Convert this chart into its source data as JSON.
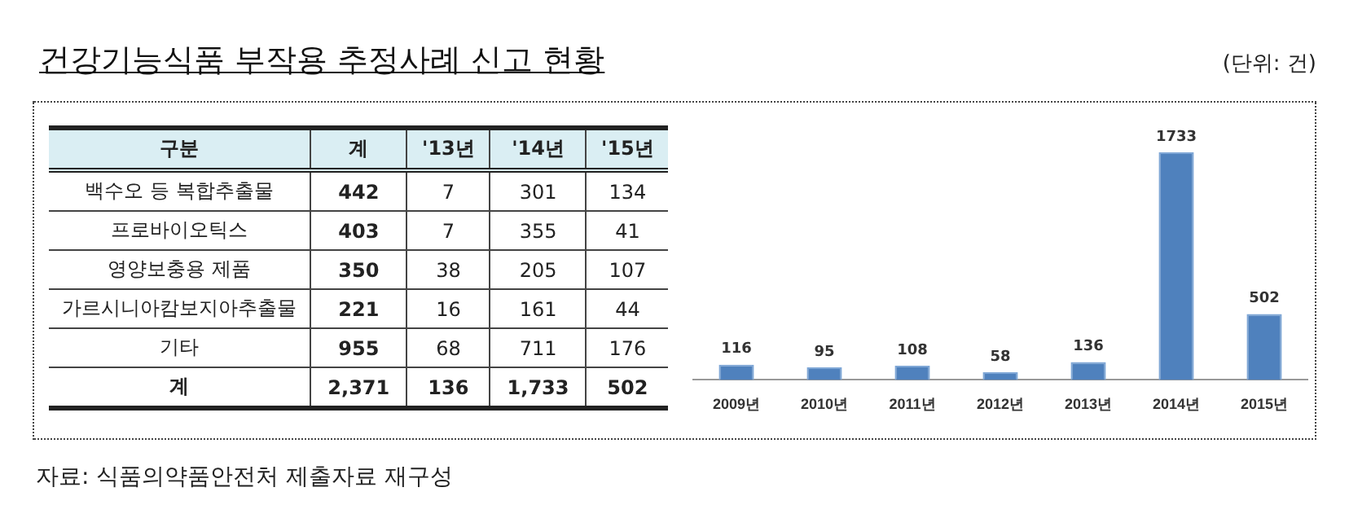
{
  "chart_data": [
    {
      "type": "other",
      "title": "건강기능식품 부작용 추정사례 신고 현황",
      "ylabel": "구분",
      "categories": [
        "계",
        "'13년",
        "'14년",
        "'15년"
      ],
      "y_categories": [
        "백수오 등 복합추출물",
        "프로바이오틱스",
        "영양보충용 제품",
        "가르시니아캄보지아추출물",
        "기타",
        "계"
      ],
      "cell_labels": [
        [
          "442",
          "7",
          "301",
          "134"
        ],
        [
          "403",
          "7",
          "355",
          "41"
        ],
        [
          "350",
          "38",
          "205",
          "107"
        ],
        [
          "221",
          "16",
          "161",
          "44"
        ],
        [
          "955",
          "68",
          "711",
          "176"
        ],
        [
          "2,371",
          "136",
          "1,733",
          "502"
        ]
      ],
      "annotations": [
        "(단위: 건)",
        "자료: 식품의약품안전처 제출자료 재구성"
      ]
    },
    {
      "type": "bar",
      "categories": [
        "2009년",
        "2010년",
        "2011년",
        "2012년",
        "2013년",
        "2014년",
        "2015년"
      ],
      "values": [
        116,
        95,
        108,
        58,
        136,
        1733,
        502
      ],
      "color": "#4f81bd",
      "data_labels": true,
      "tick_labels": "x",
      "grid": false,
      "legend": false
    }
  ]
}
